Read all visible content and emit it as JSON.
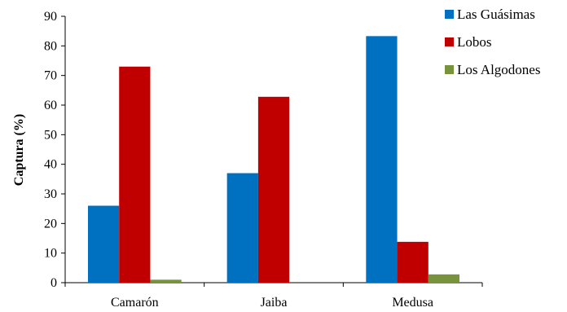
{
  "chart_data": {
    "type": "bar",
    "title": "",
    "xlabel": "",
    "ylabel": "Captura (%)",
    "ylim": [
      0,
      90
    ],
    "yticks": [
      "0",
      "10",
      "20",
      "30",
      "40",
      "50",
      "60",
      "70",
      "80",
      "90"
    ],
    "categories": [
      "Camarón",
      "Jaiba",
      "Medusa"
    ],
    "series": [
      {
        "name": "Las Guásimas",
        "color": "#0070C0",
        "values": [
          26,
          37,
          83.3
        ]
      },
      {
        "name": "Lobos",
        "color": "#C00000",
        "values": [
          73,
          62.8,
          13.8
        ]
      },
      {
        "name": "Los Algodones",
        "color": "#77933C",
        "values": [
          1,
          0,
          2.8
        ]
      }
    ],
    "grid": false,
    "legend_position": "top-right"
  }
}
